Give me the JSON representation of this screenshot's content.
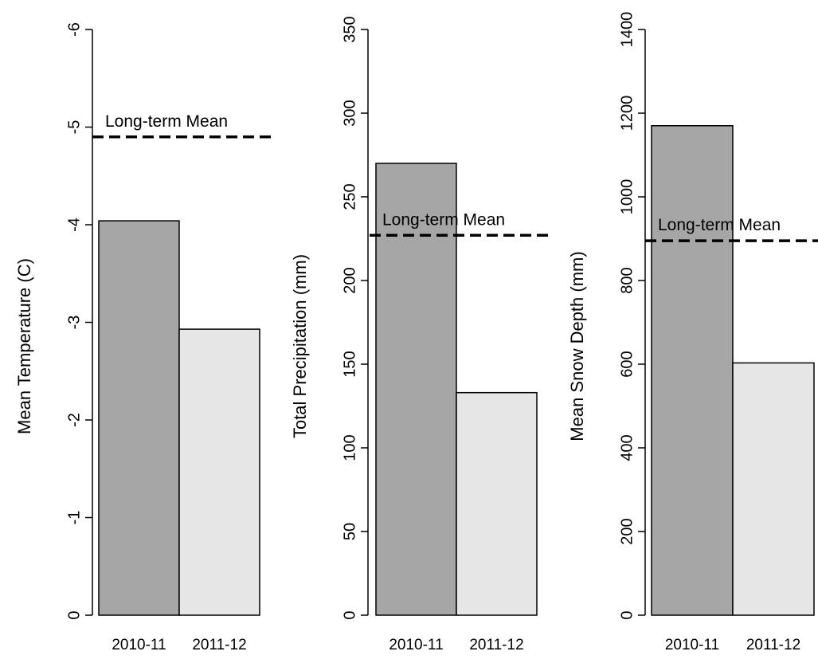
{
  "chart_data": [
    {
      "type": "bar",
      "categories": [
        "2010-11",
        "2011-12"
      ],
      "values": [
        -4.04,
        -2.93
      ],
      "bar_colors": [
        "#a6a6a6",
        "#e6e6e6"
      ],
      "ylabel": "Mean Temperature (C)",
      "ylim": [
        0,
        -6
      ],
      "yticks": [
        0,
        -1,
        -2,
        -3,
        -4,
        -5,
        -6
      ],
      "reference_line": {
        "label": "Long-term Mean",
        "value": -4.9,
        "style": "dashed"
      }
    },
    {
      "type": "bar",
      "categories": [
        "2010-11",
        "2011-12"
      ],
      "values": [
        270,
        133
      ],
      "bar_colors": [
        "#a6a6a6",
        "#e6e6e6"
      ],
      "ylabel": "Total Precipitation (mm)",
      "ylim": [
        0,
        350
      ],
      "yticks": [
        0,
        50,
        100,
        150,
        200,
        250,
        300,
        350
      ],
      "reference_line": {
        "label": "Long-term Mean",
        "value": 227,
        "style": "dashed"
      }
    },
    {
      "type": "bar",
      "categories": [
        "2010-11",
        "2011-12"
      ],
      "values": [
        1170,
        603
      ],
      "bar_colors": [
        "#a6a6a6",
        "#e6e6e6"
      ],
      "ylabel": "Mean Snow Depth (mm)",
      "ylim": [
        0,
        1400
      ],
      "yticks": [
        0,
        200,
        400,
        600,
        800,
        1000,
        1200,
        1400
      ],
      "reference_line": {
        "label": "Long-term Mean",
        "value": 895,
        "style": "dashed"
      }
    }
  ]
}
